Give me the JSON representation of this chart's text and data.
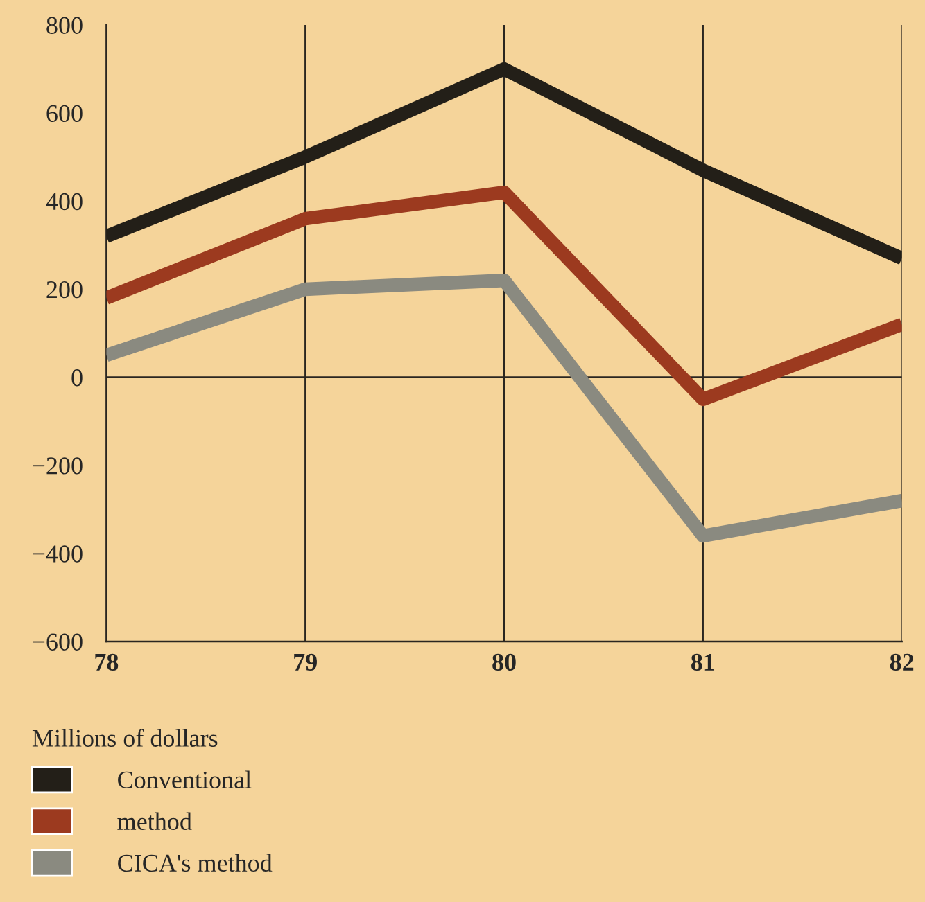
{
  "chart_data": {
    "type": "line",
    "x": [
      78,
      79,
      80,
      81,
      82
    ],
    "series": [
      {
        "name": "Conventional",
        "color": "#231f18",
        "values": [
          320,
          500,
          700,
          470,
          270
        ]
      },
      {
        "name": "method",
        "color": "#9c3a1f",
        "values": [
          180,
          360,
          420,
          -50,
          120
        ]
      },
      {
        "name": "CICA's method",
        "color": "#8a8a80",
        "values": [
          50,
          200,
          220,
          -360,
          -280
        ]
      }
    ],
    "xlim": [
      78,
      82
    ],
    "xticks": [
      78,
      79,
      80,
      81,
      82
    ],
    "ylim": [
      -600,
      800
    ],
    "yticks": [
      -600,
      -400,
      -200,
      0,
      200,
      400,
      600,
      800
    ],
    "ref_lines": [
      {
        "axis": "y",
        "value": 0,
        "color": "#2a2620"
      }
    ],
    "grid": "x",
    "legend": "bottom left",
    "legend_title": "Millions of dollars",
    "marker": "none",
    "line_style": "solid"
  }
}
